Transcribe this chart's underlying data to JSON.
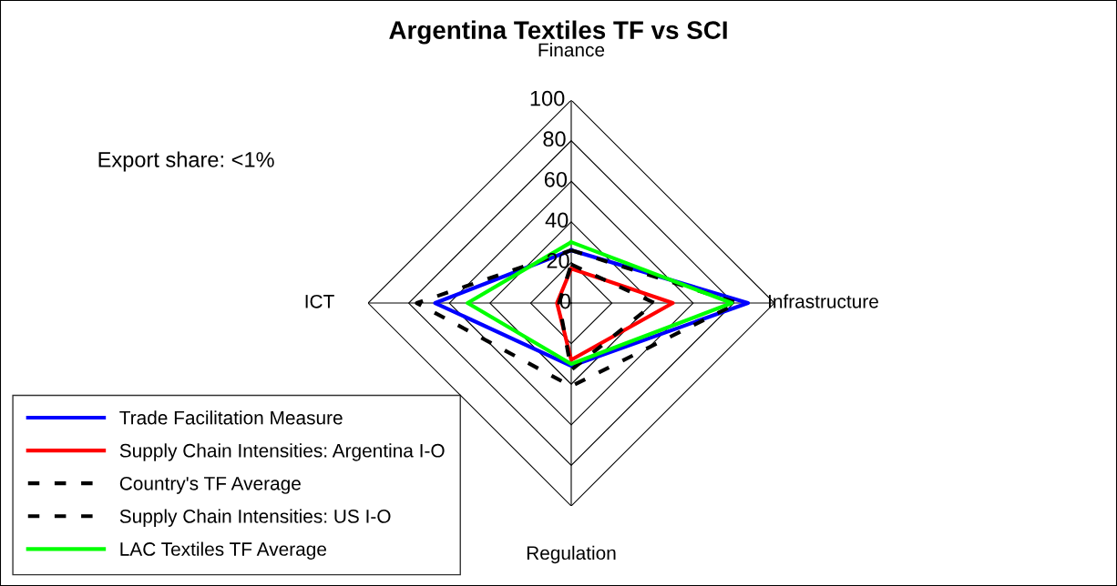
{
  "chart_data": {
    "type": "radar",
    "title": "Argentina Textiles TF vs SCI",
    "categories": [
      "Finance",
      "Infrastructure",
      "Regulation",
      "ICT"
    ],
    "series": [
      {
        "name": "Trade Facilitation Measure",
        "color": "#0000ff",
        "values": [
          26,
          87,
          31,
          67
        ],
        "line_style": "solid"
      },
      {
        "name": "Supply Chain Intensities: Argentina I-O",
        "color": "#ff0000",
        "values": [
          17,
          50,
          28,
          7
        ],
        "line_style": "solid"
      },
      {
        "name": "Country's TF Average",
        "color": "#000000",
        "values": [
          26,
          82,
          41,
          76
        ],
        "line_style": "dashed"
      },
      {
        "name": "Supply Chain Intensities: US I-O",
        "color": "#000000",
        "values": [
          19,
          41,
          33,
          6
        ],
        "line_style": "dashed"
      },
      {
        "name": "LAC Textiles TF Average",
        "color": "#00ff00",
        "values": [
          30,
          79,
          30,
          51
        ],
        "line_style": "solid"
      }
    ],
    "ylim": [
      0,
      100
    ],
    "yticks": [
      0,
      20,
      40,
      60,
      80,
      100
    ],
    "grid": true,
    "legend": "bottom left",
    "annotations": [
      "Export share: <1%"
    ]
  }
}
